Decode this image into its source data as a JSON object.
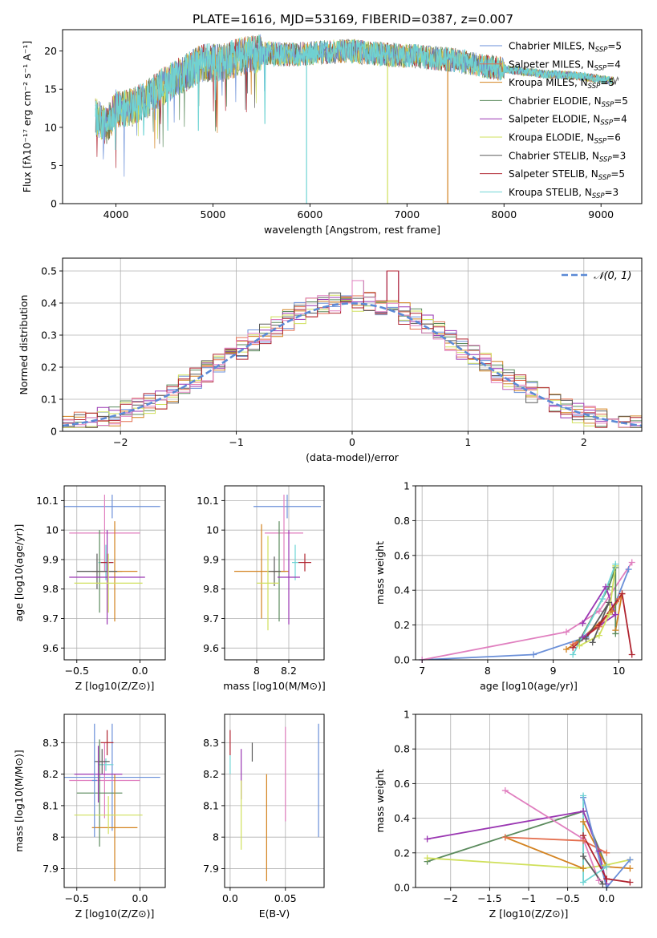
{
  "figure_title": "PLATE=1616, MJD=53169, FIBERID=0387, z=0.007",
  "colors": {
    "chabrier_miles": "#6a8fd8",
    "salpeter_miles": "#e46f4f",
    "kroupa_miles": "#d3821f",
    "chabrier_elodie": "#5a8a5c",
    "salpeter_elodie": "#9a36b2",
    "kroupa_elodie": "#d0e05c",
    "chabrier_stelib": "#5c5c5c",
    "salpeter_stelib": "#b02430",
    "kroupa_stelib": "#6fd4d4",
    "pink": "#e07fbf",
    "gaussian": "#5b8ad6",
    "grid": "#b0b0b0"
  },
  "chart_data": [
    {
      "id": "spectrum",
      "type": "line",
      "title": "PLATE=1616, MJD=53169, FIBERID=0387, z=0.007",
      "xlabel": "wavelength [Angstrom, rest frame]",
      "ylabel": "Flux [fλ10⁻¹⁷ erg cm⁻² s⁻¹ A⁻¹]",
      "xlim": [
        3450,
        9420
      ],
      "ylim": [
        0,
        22.8
      ],
      "xticks": [
        4000,
        5000,
        6000,
        7000,
        8000,
        9000
      ],
      "yticks": [
        0,
        5,
        10,
        15,
        20
      ],
      "grid": false,
      "legend_position": "top-right",
      "legend": [
        {
          "label": "Chabrier MILES, N",
          "sub": "SSP",
          "suffix": "=5",
          "color_key": "chabrier_miles"
        },
        {
          "label": "Salpeter MILES, N",
          "sub": "SSP",
          "suffix": "=4",
          "color_key": "salpeter_miles"
        },
        {
          "label": "Kroupa MILES, N",
          "sub": "SSP",
          "suffix": "=5",
          "color_key": "kroupa_miles"
        },
        {
          "label": "Chabrier ELODIE, N",
          "sub": "SSP",
          "suffix": "=5",
          "color_key": "chabrier_elodie"
        },
        {
          "label": "Salpeter ELODIE, N",
          "sub": "SSP",
          "suffix": "=4",
          "color_key": "salpeter_elodie"
        },
        {
          "label": "Kroupa ELODIE, N",
          "sub": "SSP",
          "suffix": "=6",
          "color_key": "kroupa_elodie"
        },
        {
          "label": "Chabrier STELIB, N",
          "sub": "SSP",
          "suffix": "=3",
          "color_key": "chabrier_stelib"
        },
        {
          "label": "Salpeter STELIB, N",
          "sub": "SSP",
          "suffix": "=5",
          "color_key": "salpeter_stelib"
        },
        {
          "label": "Kroupa STELIB, N",
          "sub": "SSP",
          "suffix": "=3",
          "color_key": "kroupa_stelib"
        }
      ],
      "continuum": [
        [
          3780,
          11.5
        ],
        [
          3900,
          10
        ],
        [
          4000,
          12.5
        ],
        [
          4100,
          12.5
        ],
        [
          4300,
          13.5
        ],
        [
          4500,
          15.5
        ],
        [
          4700,
          17
        ],
        [
          4900,
          18.5
        ],
        [
          5100,
          18.5
        ],
        [
          5300,
          19.3
        ],
        [
          5500,
          19.8
        ],
        [
          5800,
          19.5
        ],
        [
          6100,
          19.8
        ],
        [
          6400,
          20
        ],
        [
          6800,
          19.5
        ],
        [
          7100,
          19.3
        ],
        [
          7500,
          18.8
        ],
        [
          7800,
          18
        ],
        [
          8100,
          17.5
        ],
        [
          8400,
          17
        ],
        [
          8700,
          16.8
        ],
        [
          9000,
          16.3
        ],
        [
          9200,
          16
        ]
      ],
      "noise_amplitude": 1.6,
      "drop_lines": [
        {
          "x": 5965,
          "color_key": "kroupa_stelib"
        },
        {
          "x": 6800,
          "color_key": "kroupa_elodie"
        },
        {
          "x": 7420,
          "color_key": "kroupa_miles"
        }
      ]
    },
    {
      "id": "residuals",
      "type": "histogram",
      "xlabel": "(data-model)/error",
      "ylabel": "Normed distribution",
      "xlim": [
        -2.5,
        2.5
      ],
      "ylim": [
        0,
        0.54
      ],
      "xticks": [
        -2,
        -1,
        0,
        1,
        2
      ],
      "yticks": [
        0.0,
        0.1,
        0.2,
        0.3,
        0.4,
        0.5
      ],
      "grid": true,
      "bin_width": 0.1,
      "reference_curve": {
        "label": "𝒩(0, 1)",
        "mean": 0,
        "sigma": 1
      },
      "legend_position": "top-right",
      "series_color_keys": [
        "chabrier_miles",
        "salpeter_miles",
        "kroupa_miles",
        "chabrier_elodie",
        "salpeter_elodie",
        "kroupa_elodie",
        "chabrier_stelib",
        "salpeter_stelib",
        "pink"
      ],
      "peak_bins": {
        "-0.35": 0.49,
        "0.0": 0.47,
        "0.05": 0.47,
        "0.25": 0.52,
        "0.3": 0.5
      }
    },
    {
      "id": "age_vs_Z",
      "type": "scatter",
      "xlabel": "Z [log10(Z/Z⊙)]",
      "ylabel": "age [log10(age/yr)]",
      "xlim": [
        -0.6,
        0.2
      ],
      "ylim": [
        9.56,
        10.15
      ],
      "xticks": [
        -0.5,
        0.0
      ],
      "yticks": [
        9.6,
        9.7,
        9.8,
        9.9,
        10.0,
        10.1
      ],
      "grid": true,
      "points": [
        {
          "x": -0.22,
          "y": 10.08,
          "xerr": 0.38,
          "yerr": 0.04,
          "color_key": "chabrier_miles"
        },
        {
          "x": -0.28,
          "y": 9.99,
          "xerr": 0.28,
          "yerr": 0.13,
          "color_key": "pink"
        },
        {
          "x": -0.27,
          "y": 9.89,
          "xerr": 0.06,
          "yerr": 0.06,
          "color_key": "kroupa_stelib"
        },
        {
          "x": -0.26,
          "y": 9.89,
          "xerr": 0.05,
          "yerr": 0.03,
          "color_key": "salpeter_stelib"
        },
        {
          "x": -0.32,
          "y": 9.86,
          "xerr": 0.18,
          "yerr": 0.14,
          "color_key": "chabrier_elodie"
        },
        {
          "x": -0.2,
          "y": 9.86,
          "xerr": 0.18,
          "yerr": 0.17,
          "color_key": "kroupa_miles"
        },
        {
          "x": -0.34,
          "y": 9.86,
          "xerr": 0.16,
          "yerr": 0.06,
          "color_key": "chabrier_stelib"
        },
        {
          "x": -0.26,
          "y": 9.84,
          "xerr": 0.3,
          "yerr": 0.16,
          "color_key": "salpeter_elodie"
        },
        {
          "x": -0.25,
          "y": 9.82,
          "xerr": 0.27,
          "yerr": 0.1,
          "color_key": "kroupa_elodie"
        }
      ]
    },
    {
      "id": "age_vs_mass",
      "type": "scatter",
      "xlabel": "mass [log10(M/M⊙)]",
      "ylabel": "",
      "xlim": [
        7.8,
        8.42
      ],
      "ylim": [
        9.56,
        10.15
      ],
      "xticks": [
        8.0,
        8.2
      ],
      "yticks": [
        9.6,
        9.7,
        9.8,
        9.9,
        10.0,
        10.1
      ],
      "grid": true,
      "points": [
        {
          "x": 8.19,
          "y": 10.08,
          "xerr": 0.21,
          "yerr": 0.04,
          "color_key": "chabrier_miles"
        },
        {
          "x": 8.17,
          "y": 9.99,
          "xerr": 0.12,
          "yerr": 0.13,
          "color_key": "pink"
        },
        {
          "x": 8.24,
          "y": 9.89,
          "xerr": 0.02,
          "yerr": 0.06,
          "color_key": "kroupa_stelib"
        },
        {
          "x": 8.3,
          "y": 9.89,
          "xerr": 0.04,
          "yerr": 0.03,
          "color_key": "salpeter_stelib"
        },
        {
          "x": 8.14,
          "y": 9.86,
          "xerr": 0.04,
          "yerr": 0.17,
          "color_key": "chabrier_elodie"
        },
        {
          "x": 8.03,
          "y": 9.86,
          "xerr": 0.17,
          "yerr": 0.16,
          "color_key": "kroupa_miles"
        },
        {
          "x": 8.11,
          "y": 9.86,
          "xerr": 0.04,
          "yerr": 0.05,
          "color_key": "chabrier_stelib"
        },
        {
          "x": 8.2,
          "y": 9.84,
          "xerr": 0.07,
          "yerr": 0.16,
          "color_key": "salpeter_elodie"
        },
        {
          "x": 8.07,
          "y": 9.82,
          "xerr": 0.07,
          "yerr": 0.16,
          "color_key": "kroupa_elodie"
        }
      ]
    },
    {
      "id": "weight_vs_age",
      "type": "line",
      "xlabel": "age [log10(age/yr)]",
      "ylabel": "mass weight",
      "xlim": [
        6.9,
        10.35
      ],
      "ylim": [
        0,
        1.0
      ],
      "xticks": [
        7,
        8,
        9,
        10
      ],
      "yticks": [
        0.0,
        0.2,
        0.4,
        0.6,
        0.8,
        1.0
      ],
      "grid": true,
      "series": [
        {
          "color_key": "chabrier_miles",
          "points": [
            [
              7.0,
              0.0
            ],
            [
              8.7,
              0.03
            ],
            [
              9.5,
              0.13
            ],
            [
              9.9,
              0.28
            ],
            [
              10.15,
              0.52
            ]
          ]
        },
        {
          "color_key": "pink",
          "points": [
            [
              7.0,
              0.0
            ],
            [
              9.2,
              0.16
            ],
            [
              9.7,
              0.28
            ],
            [
              10.2,
              0.56
            ]
          ]
        },
        {
          "color_key": "kroupa_miles",
          "points": [
            [
              9.2,
              0.06
            ],
            [
              9.4,
              0.11
            ],
            [
              9.9,
              0.28
            ],
            [
              10.05,
              0.38
            ],
            [
              9.95,
              0.17
            ]
          ]
        },
        {
          "color_key": "salpeter_miles",
          "points": [
            [
              9.3,
              0.09
            ],
            [
              9.7,
              0.19
            ],
            [
              10.0,
              0.35
            ]
          ]
        },
        {
          "color_key": "chabrier_elodie",
          "points": [
            [
              9.4,
              0.11
            ],
            [
              9.85,
              0.42
            ],
            [
              9.95,
              0.53
            ],
            [
              9.95,
              0.15
            ]
          ]
        },
        {
          "color_key": "salpeter_elodie",
          "points": [
            [
              9.45,
              0.21
            ],
            [
              9.8,
              0.42
            ],
            [
              9.95,
              0.26
            ],
            [
              9.45,
              0.13
            ]
          ]
        },
        {
          "color_key": "kroupa_elodie",
          "points": [
            [
              9.4,
              0.08
            ],
            [
              9.7,
              0.14
            ],
            [
              9.85,
              0.26
            ],
            [
              9.95,
              0.54
            ]
          ]
        },
        {
          "color_key": "chabrier_stelib",
          "points": [
            [
              9.5,
              0.12
            ],
            [
              9.85,
              0.33
            ],
            [
              9.6,
              0.1
            ]
          ]
        },
        {
          "color_key": "salpeter_stelib",
          "points": [
            [
              9.3,
              0.07
            ],
            [
              9.7,
              0.2
            ],
            [
              10.05,
              0.38
            ],
            [
              10.2,
              0.03
            ]
          ]
        },
        {
          "color_key": "kroupa_stelib",
          "points": [
            [
              9.3,
              0.03
            ],
            [
              9.75,
              0.35
            ],
            [
              9.95,
              0.55
            ]
          ]
        }
      ]
    },
    {
      "id": "mass_vs_Z",
      "type": "scatter",
      "xlabel": "Z [log10(Z/Z⊙)]",
      "ylabel": "mass [log10(M/M⊙)]",
      "xlim": [
        -0.6,
        0.2
      ],
      "ylim": [
        7.84,
        8.39
      ],
      "xticks": [
        -0.5,
        0.0
      ],
      "yticks": [
        7.9,
        8.0,
        8.1,
        8.2,
        8.3
      ],
      "grid": true,
      "points": [
        {
          "x": -0.22,
          "y": 8.19,
          "xerr": 0.38,
          "yerr": 0.17,
          "color_key": "chabrier_miles"
        },
        {
          "x": -0.28,
          "y": 8.18,
          "xerr": 0.28,
          "yerr": 0.12,
          "color_key": "pink"
        },
        {
          "x": -0.27,
          "y": 8.23,
          "xerr": 0.06,
          "yerr": 0.02,
          "color_key": "kroupa_stelib"
        },
        {
          "x": -0.26,
          "y": 8.3,
          "xerr": 0.05,
          "yerr": 0.04,
          "color_key": "salpeter_stelib"
        },
        {
          "x": -0.32,
          "y": 8.14,
          "xerr": 0.18,
          "yerr": 0.17,
          "color_key": "chabrier_elodie"
        },
        {
          "x": -0.2,
          "y": 8.03,
          "xerr": 0.18,
          "yerr": 0.17,
          "color_key": "kroupa_miles"
        },
        {
          "x": -0.3,
          "y": 8.24,
          "xerr": 0.06,
          "yerr": 0.04,
          "color_key": "chabrier_stelib"
        },
        {
          "x": -0.33,
          "y": 8.2,
          "xerr": 0.19,
          "yerr": 0.09,
          "color_key": "salpeter_elodie"
        },
        {
          "x": -0.25,
          "y": 8.07,
          "xerr": 0.27,
          "yerr": 0.06,
          "color_key": "kroupa_elodie"
        },
        {
          "x": -0.36,
          "y": 8.18,
          "xerr": 0.02,
          "yerr": 0.18,
          "color_key": "chabrier_miles"
        }
      ]
    },
    {
      "id": "mass_vs_ebv",
      "type": "scatter",
      "xlabel": "E(B-V)",
      "ylabel": "",
      "xlim": [
        -0.005,
        0.085
      ],
      "ylim": [
        7.84,
        8.39
      ],
      "xticks": [
        0.0,
        0.05
      ],
      "yticks": [
        7.9,
        8.0,
        8.1,
        8.2,
        8.3
      ],
      "grid": true,
      "points": [
        {
          "x": 0.0,
          "y": 8.3,
          "xerr": 0,
          "yerr": 0.04,
          "color_key": "salpeter_stelib"
        },
        {
          "x": 0.0,
          "y": 8.23,
          "xerr": 0,
          "yerr": 0.03,
          "color_key": "kroupa_stelib"
        },
        {
          "x": 0.01,
          "y": 8.2,
          "xerr": 0,
          "yerr": 0.08,
          "color_key": "salpeter_elodie"
        },
        {
          "x": 0.01,
          "y": 8.07,
          "xerr": 0,
          "yerr": 0.11,
          "color_key": "kroupa_elodie"
        },
        {
          "x": 0.02,
          "y": 8.27,
          "xerr": 0,
          "yerr": 0.03,
          "color_key": "chabrier_stelib"
        },
        {
          "x": 0.033,
          "y": 8.03,
          "xerr": 0,
          "yerr": 0.17,
          "color_key": "kroupa_miles"
        },
        {
          "x": 0.05,
          "y": 8.2,
          "xerr": 0,
          "yerr": 0.15,
          "color_key": "pink"
        },
        {
          "x": 0.08,
          "y": 8.18,
          "xerr": 0,
          "yerr": 0.18,
          "color_key": "chabrier_miles"
        }
      ]
    },
    {
      "id": "weight_vs_Z",
      "type": "line",
      "xlabel": "Z [log10(Z/Z⊙)]",
      "ylabel": "mass weight",
      "xlim": [
        -2.45,
        0.45
      ],
      "ylim": [
        0,
        1.0
      ],
      "xticks": [
        -2.0,
        -1.5,
        -1.0,
        -0.5,
        0.0
      ],
      "yticks": [
        0.0,
        0.2,
        0.4,
        0.6,
        0.8,
        1.0
      ],
      "grid": true,
      "series": [
        {
          "color_key": "chabrier_elodie",
          "points": [
            [
              -2.3,
              0.15
            ],
            [
              -0.3,
              0.44
            ],
            [
              0.0,
              0.12
            ]
          ]
        },
        {
          "color_key": "salpeter_elodie",
          "points": [
            [
              -2.3,
              0.28
            ],
            [
              -0.3,
              0.44
            ],
            [
              -0.1,
              0.21
            ],
            [
              0.0,
              0.02
            ]
          ]
        },
        {
          "color_key": "kroupa_elodie",
          "points": [
            [
              -2.3,
              0.17
            ],
            [
              -0.3,
              0.11
            ],
            [
              0.0,
              0.13
            ],
            [
              0.3,
              0.16
            ]
          ]
        },
        {
          "color_key": "pink",
          "points": [
            [
              -1.3,
              0.56
            ],
            [
              -0.3,
              0.28
            ],
            [
              -0.1,
              0.04
            ]
          ]
        },
        {
          "color_key": "kroupa_miles",
          "points": [
            [
              -1.3,
              0.29
            ],
            [
              -0.3,
              0.11
            ],
            [
              -0.3,
              0.38
            ],
            [
              0.0,
              0.12
            ],
            [
              0.3,
              0.11
            ]
          ]
        },
        {
          "color_key": "salpeter_miles",
          "points": [
            [
              -1.3,
              0.29
            ],
            [
              -0.3,
              0.27
            ],
            [
              0.0,
              0.2
            ]
          ]
        },
        {
          "color_key": "chabrier_miles",
          "points": [
            [
              -0.3,
              0.52
            ],
            [
              0.0,
              0.0
            ],
            [
              0.3,
              0.16
            ]
          ]
        },
        {
          "color_key": "salpeter_stelib",
          "points": [
            [
              -0.3,
              0.3
            ],
            [
              0.0,
              0.05
            ],
            [
              0.3,
              0.03
            ]
          ]
        },
        {
          "color_key": "kroupa_stelib",
          "points": [
            [
              -0.3,
              0.53
            ],
            [
              -0.3,
              0.03
            ],
            [
              0.0,
              0.12
            ]
          ]
        },
        {
          "color_key": "chabrier_stelib",
          "points": [
            [
              -0.3,
              0.18
            ],
            [
              -0.05,
              0.02
            ]
          ]
        }
      ]
    }
  ]
}
